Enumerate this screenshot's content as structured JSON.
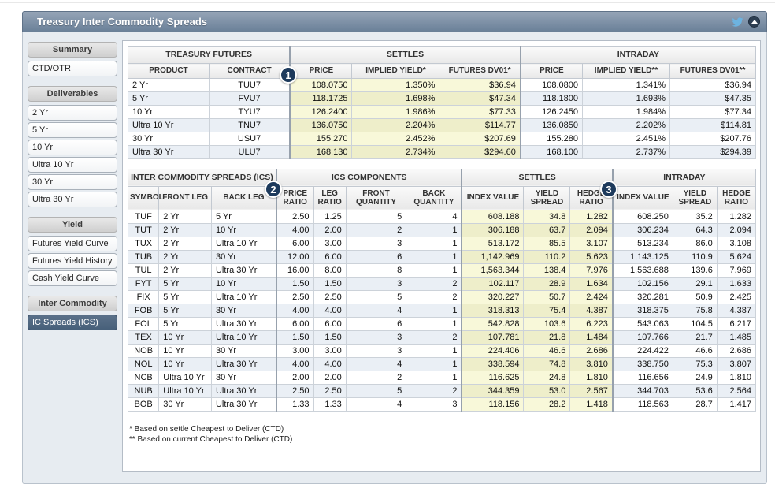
{
  "header": {
    "title": "Treasury Inter Commodity Spreads",
    "icons": {
      "share": "twitter-bird",
      "collapse": "chevron-up-circle"
    }
  },
  "colors": {
    "titlebar_gradient_top": "#95a4b6",
    "titlebar_gradient_bottom": "#6a8098",
    "selected_item": "#47607a",
    "settles_highlight": "#f8f8d9",
    "badge_navy": "#1d3a5c",
    "twitter_blue": "#6db3e0",
    "stripe_row": "#eaeff5"
  },
  "sidebar": {
    "sections": [
      {
        "label": "Summary",
        "items": [
          {
            "label": "CTD/OTR",
            "selected": false
          }
        ]
      },
      {
        "label": "Deliverables",
        "items": [
          {
            "label": "2 Yr",
            "selected": false
          },
          {
            "label": "5 Yr",
            "selected": false
          },
          {
            "label": "10 Yr",
            "selected": false
          },
          {
            "label": "Ultra 10 Yr",
            "selected": false
          },
          {
            "label": "30 Yr",
            "selected": false
          },
          {
            "label": "Ultra 30 Yr",
            "selected": false
          }
        ]
      },
      {
        "label": "Yield",
        "items": [
          {
            "label": "Futures Yield Curve",
            "selected": false
          },
          {
            "label": "Futures Yield History",
            "selected": false
          },
          {
            "label": "Cash Yield Curve",
            "selected": false
          }
        ]
      },
      {
        "label": "Inter Commodity",
        "items": [
          {
            "label": "IC Spreads (ICS)",
            "selected": true
          }
        ]
      }
    ]
  },
  "futures_table": {
    "groups": [
      "TREASURY FUTURES",
      "SETTLES",
      "INTRADAY"
    ],
    "columns": [
      "PRODUCT",
      "CONTRACT",
      "PRICE",
      "IMPLIED YIELD*",
      "FUTURES DV01*",
      "PRICE",
      "IMPLIED YIELD**",
      "FUTURES DV01**"
    ],
    "rows": [
      [
        "2 Yr",
        "TUU7",
        "108.0750",
        "1.350%",
        "$36.94",
        "108.0800",
        "1.341%",
        "$36.94"
      ],
      [
        "5 Yr",
        "FVU7",
        "118.1725",
        "1.698%",
        "$47.34",
        "118.1800",
        "1.693%",
        "$47.35"
      ],
      [
        "10 Yr",
        "TYU7",
        "126.2400",
        "1.986%",
        "$77.33",
        "126.2450",
        "1.984%",
        "$77.34"
      ],
      [
        "Ultra 10 Yr",
        "TNU7",
        "136.0750",
        "2.204%",
        "$114.77",
        "136.0850",
        "2.202%",
        "$114.81"
      ],
      [
        "30 Yr",
        "USU7",
        "155.270",
        "2.452%",
        "$207.69",
        "155.280",
        "2.451%",
        "$207.76"
      ],
      [
        "Ultra 30 Yr",
        "ULU7",
        "168.130",
        "2.734%",
        "$294.60",
        "168.100",
        "2.737%",
        "$294.39"
      ]
    ]
  },
  "ics_table": {
    "groups": [
      "INTER COMMODITY SPREADS (ICS)",
      "ICS COMPONENTS",
      "SETTLES",
      "INTRADAY"
    ],
    "columns": [
      "SYMBOL",
      "FRONT LEG",
      "BACK LEG",
      "PRICE RATIO",
      "LEG RATIO",
      "FRONT QUANTITY",
      "BACK QUANTITY",
      "INDEX VALUE",
      "YIELD SPREAD",
      "HEDGE RATIO",
      "INDEX VALUE",
      "YIELD SPREAD",
      "HEDGE RATIO"
    ],
    "rows": [
      [
        "TUF",
        "2 Yr",
        "5 Yr",
        "2.50",
        "1.25",
        "5",
        "4",
        "608.188",
        "34.8",
        "1.282",
        "608.250",
        "35.2",
        "1.282"
      ],
      [
        "TUT",
        "2 Yr",
        "10 Yr",
        "4.00",
        "2.00",
        "2",
        "1",
        "306.188",
        "63.7",
        "2.094",
        "306.234",
        "64.3",
        "2.094"
      ],
      [
        "TUX",
        "2 Yr",
        "Ultra 10 Yr",
        "6.00",
        "3.00",
        "3",
        "1",
        "513.172",
        "85.5",
        "3.107",
        "513.234",
        "86.0",
        "3.108"
      ],
      [
        "TUB",
        "2 Yr",
        "30 Yr",
        "12.00",
        "6.00",
        "6",
        "1",
        "1,142.969",
        "110.2",
        "5.623",
        "1,143.125",
        "110.9",
        "5.624"
      ],
      [
        "TUL",
        "2 Yr",
        "Ultra 30 Yr",
        "16.00",
        "8.00",
        "8",
        "1",
        "1,563.344",
        "138.4",
        "7.976",
        "1,563.688",
        "139.6",
        "7.969"
      ],
      [
        "FYT",
        "5 Yr",
        "10 Yr",
        "1.50",
        "1.50",
        "3",
        "2",
        "102.117",
        "28.9",
        "1.634",
        "102.156",
        "29.1",
        "1.633"
      ],
      [
        "FIX",
        "5 Yr",
        "Ultra 10 Yr",
        "2.50",
        "2.50",
        "5",
        "2",
        "320.227",
        "50.7",
        "2.424",
        "320.281",
        "50.9",
        "2.425"
      ],
      [
        "FOB",
        "5 Yr",
        "30 Yr",
        "4.00",
        "4.00",
        "4",
        "1",
        "318.313",
        "75.4",
        "4.387",
        "318.375",
        "75.8",
        "4.387"
      ],
      [
        "FOL",
        "5 Yr",
        "Ultra 30 Yr",
        "6.00",
        "6.00",
        "6",
        "1",
        "542.828",
        "103.6",
        "6.223",
        "543.063",
        "104.5",
        "6.217"
      ],
      [
        "TEX",
        "10 Yr",
        "Ultra 10 Yr",
        "1.50",
        "1.50",
        "3",
        "2",
        "107.781",
        "21.8",
        "1.484",
        "107.766",
        "21.7",
        "1.485"
      ],
      [
        "NOB",
        "10 Yr",
        "30 Yr",
        "3.00",
        "3.00",
        "3",
        "1",
        "224.406",
        "46.6",
        "2.686",
        "224.422",
        "46.6",
        "2.686"
      ],
      [
        "NOL",
        "10 Yr",
        "Ultra 30 Yr",
        "4.00",
        "4.00",
        "4",
        "1",
        "338.594",
        "74.8",
        "3.810",
        "338.750",
        "75.3",
        "3.807"
      ],
      [
        "NCB",
        "Ultra 10 Yr",
        "30 Yr",
        "2.00",
        "2.00",
        "2",
        "1",
        "116.625",
        "24.8",
        "1.810",
        "116.656",
        "24.9",
        "1.810"
      ],
      [
        "NUB",
        "Ultra 10 Yr",
        "Ultra 30 Yr",
        "2.50",
        "2.50",
        "5",
        "2",
        "344.359",
        "53.0",
        "2.567",
        "344.703",
        "53.6",
        "2.564"
      ],
      [
        "BOB",
        "30 Yr",
        "Ultra 30 Yr",
        "1.33",
        "1.33",
        "4",
        "3",
        "118.156",
        "28.2",
        "1.418",
        "118.563",
        "28.7",
        "1.417"
      ]
    ]
  },
  "footnotes": {
    "line1": "* Based on settle Cheapest to Deliver (CTD)",
    "line2": "** Based on current Cheapest to Deliver (CTD)"
  },
  "callouts": [
    "1",
    "2",
    "3"
  ]
}
